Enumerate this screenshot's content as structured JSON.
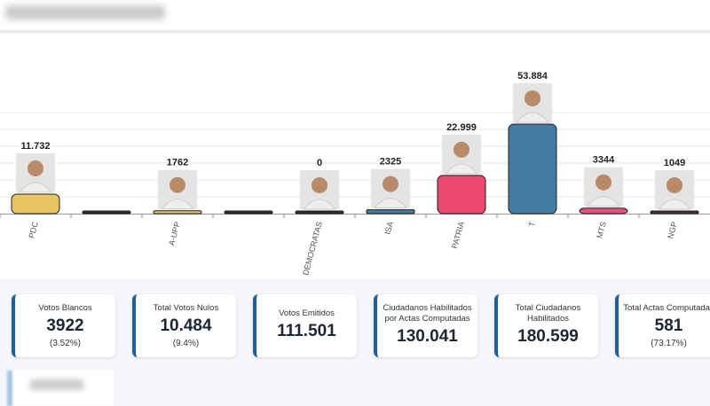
{
  "chart_data": {
    "type": "bar",
    "categories": [
      "PDC",
      "",
      "A-UPP",
      "",
      "DEMOCRATAS",
      "ISA",
      "PATRIA",
      "T",
      "MTS",
      "NGP"
    ],
    "values": [
      11732,
      0,
      1762,
      0,
      0,
      2325,
      22999,
      53884,
      3344,
      1049
    ],
    "value_labels": [
      "11.732",
      "",
      "1762",
      "",
      "0",
      "2325",
      "22.999",
      "53.884",
      "3344",
      "1049"
    ],
    "has_photo": [
      true,
      false,
      true,
      false,
      true,
      true,
      true,
      true,
      true,
      true
    ],
    "colors": [
      "#e9c462",
      "#2b2b2b",
      "#e9c462",
      "#2b2b2b",
      "#2b2b2b",
      "#3e7aa6",
      "#ec4770",
      "#437ca3",
      "#e8507a",
      "#4d2836"
    ],
    "ylim": [
      0,
      60000
    ],
    "grid": true,
    "xlabel": "",
    "ylabel": "",
    "title": ""
  },
  "cards": [
    {
      "label": "Votos Blancos",
      "value": "3922",
      "pct": "(3.52%)"
    },
    {
      "label": "Total Votos Nulos",
      "value": "10.484",
      "pct": "(9.4%)"
    },
    {
      "label": "Votos Emitidos",
      "value": "111.501",
      "pct": ""
    },
    {
      "label": "Ciudadanos Habilitados por Actas Computadas",
      "value": "130.041",
      "pct": ""
    },
    {
      "label": "Total Ciudadanos Habilitados",
      "value": "180.599",
      "pct": ""
    },
    {
      "label": "Total Actas Computadas",
      "value": "581",
      "pct": "(73.17%)"
    }
  ]
}
